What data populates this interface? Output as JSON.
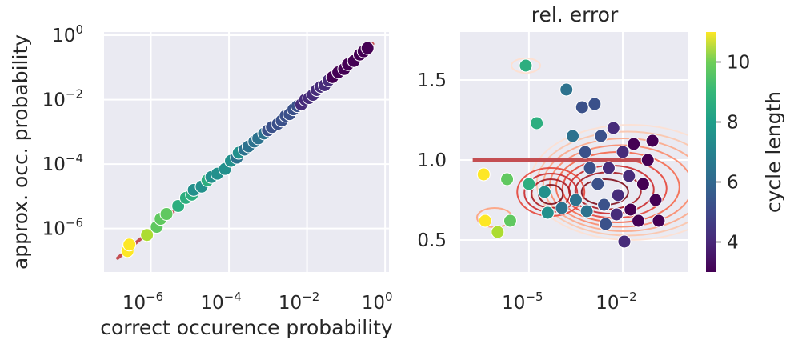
{
  "chart_data": [
    {
      "type": "scatter",
      "panel": "left",
      "title": "",
      "xlabel": "correct occurence probability",
      "ylabel": "approx. occ. probability",
      "xscale": "log",
      "yscale": "log",
      "xlim_log10": [
        -7.2,
        0.1
      ],
      "ylim_log10": [
        -7.35,
        0.1
      ],
      "xticks": [
        {
          "base": "10",
          "exp": "−6",
          "log10": -6
        },
        {
          "base": "10",
          "exp": "−4",
          "log10": -4
        },
        {
          "base": "10",
          "exp": "−2",
          "log10": -2
        },
        {
          "base": "10",
          "exp": "0",
          "log10": 0
        }
      ],
      "yticks": [
        {
          "base": "10",
          "exp": "−6",
          "log10": -6
        },
        {
          "base": "10",
          "exp": "−4",
          "log10": -4
        },
        {
          "base": "10",
          "exp": "−2",
          "log10": -2
        },
        {
          "base": "10",
          "exp": "0",
          "log10": 0
        }
      ],
      "identity_line": {
        "from_log10": -6.85,
        "to_log10": -0.32,
        "color": "#c44e52"
      },
      "points_log10": [
        [
          -6.6,
          -6.7,
          11
        ],
        [
          -6.55,
          -6.5,
          11
        ],
        [
          -6.1,
          -6.2,
          10
        ],
        [
          -5.85,
          -5.95,
          9
        ],
        [
          -5.75,
          -5.7,
          9
        ],
        [
          -5.6,
          -5.55,
          9
        ],
        [
          -5.3,
          -5.3,
          8
        ],
        [
          -5.1,
          -5.05,
          8
        ],
        [
          -4.95,
          -4.95,
          8
        ],
        [
          -4.9,
          -4.8,
          7
        ],
        [
          -4.7,
          -4.7,
          7
        ],
        [
          -4.55,
          -4.5,
          8
        ],
        [
          -4.45,
          -4.4,
          7
        ],
        [
          -4.3,
          -4.3,
          7
        ],
        [
          -4.1,
          -4.15,
          7
        ],
        [
          -3.95,
          -3.9,
          7
        ],
        [
          -3.8,
          -3.8,
          6
        ],
        [
          -3.75,
          -3.65,
          7
        ],
        [
          -3.6,
          -3.55,
          6
        ],
        [
          -3.5,
          -3.45,
          6
        ],
        [
          -3.35,
          -3.3,
          6
        ],
        [
          -3.25,
          -3.2,
          6
        ],
        [
          -3.1,
          -3.05,
          6
        ],
        [
          -3.0,
          -2.95,
          5
        ],
        [
          -2.9,
          -2.85,
          5
        ],
        [
          -2.75,
          -2.75,
          5
        ],
        [
          -2.65,
          -2.65,
          5
        ],
        [
          -2.55,
          -2.5,
          5
        ],
        [
          -2.45,
          -2.45,
          5
        ],
        [
          -2.35,
          -2.3,
          5
        ],
        [
          -2.25,
          -2.2,
          5
        ],
        [
          -2.15,
          -2.15,
          4
        ],
        [
          -2.05,
          -2.0,
          4
        ],
        [
          -1.95,
          -1.95,
          4
        ],
        [
          -1.85,
          -1.85,
          4
        ],
        [
          -1.75,
          -1.7,
          4
        ],
        [
          -1.65,
          -1.6,
          4
        ],
        [
          -1.55,
          -1.55,
          4
        ],
        [
          -1.45,
          -1.4,
          4
        ],
        [
          -1.35,
          -1.3,
          3
        ],
        [
          -1.2,
          -1.15,
          3
        ],
        [
          -1.05,
          -1.05,
          3
        ],
        [
          -0.95,
          -0.9,
          3
        ],
        [
          -0.8,
          -0.8,
          3
        ],
        [
          -0.65,
          -0.6,
          3
        ],
        [
          -0.55,
          -0.5,
          3
        ],
        [
          -0.45,
          -0.4,
          3
        ]
      ]
    },
    {
      "type": "scatter",
      "panel": "right",
      "title": "rel. error",
      "xlabel": "",
      "ylabel": "",
      "xscale": "log",
      "xlim_log10": [
        -7.2,
        0.1
      ],
      "ylim": [
        0.3,
        1.8
      ],
      "xticks": [
        {
          "base": "10",
          "exp": "−5",
          "log10": -5
        },
        {
          "base": "10",
          "exp": "−2",
          "log10": -2
        }
      ],
      "yticks": [
        "0.5",
        "1.0",
        "1.5"
      ],
      "ytick_values": [
        0.5,
        1.0,
        1.5
      ],
      "reference_line": {
        "y": 1.0,
        "x_from_log10": -6.8,
        "x_to_log10": -1.35,
        "color": "#c44e52"
      },
      "kde_contours": "red density contours centered near x=10^-1.7, y=0.85",
      "points": [
        [
          -6.45,
          0.91,
          11
        ],
        [
          -6.4,
          0.62,
          11
        ],
        [
          -6.0,
          0.55,
          10
        ],
        [
          -5.7,
          0.88,
          9
        ],
        [
          -5.6,
          0.62,
          9
        ],
        [
          -5.1,
          1.59,
          8
        ],
        [
          -5.0,
          0.85,
          8
        ],
        [
          -4.75,
          1.23,
          8
        ],
        [
          -4.5,
          0.8,
          7
        ],
        [
          -4.4,
          0.67,
          7
        ],
        [
          -3.95,
          0.7,
          6
        ],
        [
          -3.8,
          1.44,
          6
        ],
        [
          -3.6,
          1.15,
          6
        ],
        [
          -3.5,
          0.75,
          6
        ],
        [
          -3.3,
          1.33,
          5
        ],
        [
          -3.2,
          1.05,
          5
        ],
        [
          -3.05,
          0.95,
          5
        ],
        [
          -2.9,
          1.35,
          5
        ],
        [
          -2.8,
          0.85,
          5
        ],
        [
          -2.7,
          1.15,
          5
        ],
        [
          -2.6,
          0.72,
          5
        ],
        [
          -2.45,
          0.95,
          4
        ],
        [
          -2.3,
          1.2,
          4
        ],
        [
          -2.15,
          0.78,
          4
        ],
        [
          -2.0,
          1.05,
          4
        ],
        [
          -1.95,
          0.49,
          4
        ],
        [
          -1.8,
          0.9,
          4
        ],
        [
          -1.65,
          1.1,
          3
        ],
        [
          -1.5,
          0.62,
          3
        ],
        [
          -1.35,
          0.85,
          3
        ],
        [
          -1.2,
          1.0,
          3
        ],
        [
          -1.05,
          1.12,
          3
        ],
        [
          -0.95,
          0.75,
          3
        ],
        [
          -0.85,
          0.62,
          3
        ],
        [
          -2.55,
          0.6,
          5
        ],
        [
          -3.15,
          0.68,
          6
        ],
        [
          -2.2,
          0.66,
          4
        ],
        [
          -1.75,
          0.69,
          3
        ]
      ]
    }
  ],
  "colorbar": {
    "label": "cycle length",
    "min": 3,
    "max": 11,
    "ticks": [
      "4",
      "6",
      "8",
      "10"
    ],
    "tick_values": [
      4,
      6,
      8,
      10
    ],
    "colormap": "viridis"
  }
}
